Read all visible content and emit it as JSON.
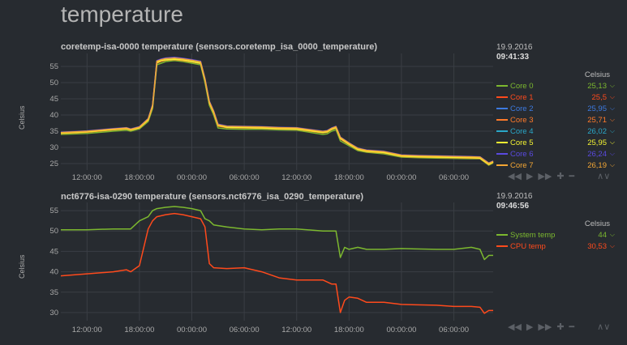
{
  "section": {
    "title": "temperature"
  },
  "charts": [
    {
      "title": "coretemp-isa-0000 temperature (sensors.coretemp_isa_0000_temperature)",
      "ylabel": "Celsius",
      "legend": {
        "date": "19.9.2016",
        "time": "09:41:33",
        "units": "Celsius",
        "items": [
          {
            "name": "Core 0",
            "value": "25,13",
            "color": "#7cb82f"
          },
          {
            "name": "Core 1",
            "value": "25,5",
            "color": "#ff4a1c"
          },
          {
            "name": "Core 2",
            "value": "25,95",
            "color": "#3d7ae0"
          },
          {
            "name": "Core 3",
            "value": "25,71",
            "color": "#ff7a2a"
          },
          {
            "name": "Core 4",
            "value": "26,02",
            "color": "#2aa7c8"
          },
          {
            "name": "Core 5",
            "value": "25,95",
            "color": "#f3f332"
          },
          {
            "name": "Core 6",
            "value": "26,24",
            "color": "#5a4ae0"
          },
          {
            "name": "Core 7",
            "value": "26,19",
            "color": "#f3a634"
          }
        ]
      },
      "controls": [
        "rewind-icon",
        "play-icon",
        "forward-icon",
        "zoom-in-icon",
        "zoom-out-icon",
        "resize-icon"
      ]
    },
    {
      "title": "nct6776-isa-0290 temperature (sensors.nct6776_isa_0290_temperature)",
      "ylabel": "Celsius",
      "legend": {
        "date": "19.9.2016",
        "time": "09:46:56",
        "units": "Celsius",
        "items": [
          {
            "name": "System temp",
            "value": "44",
            "color": "#7cb82f"
          },
          {
            "name": "CPU temp",
            "value": "30,53",
            "color": "#ff4a1c"
          }
        ]
      },
      "controls": [
        "rewind-icon",
        "play-icon",
        "forward-icon",
        "zoom-in-icon",
        "zoom-out-icon",
        "resize-icon"
      ]
    }
  ],
  "chart_data": [
    {
      "type": "line",
      "title": "coretemp-isa-0000 temperature (sensors.coretemp_isa_0000_temperature)",
      "ylabel": "Celsius",
      "xlabel": "",
      "x_ticks": [
        "12:00:00",
        "18:00:00",
        "00:00:00",
        "06:00:00",
        "12:00:00",
        "18:00:00",
        "00:00:00",
        "06:00:00"
      ],
      "y_ticks": [
        25,
        30,
        35,
        40,
        45,
        50,
        55
      ],
      "ylim": [
        23,
        59
      ],
      "grid": true,
      "x": [
        "09:00",
        "12:00",
        "15:00",
        "16:30",
        "17:00",
        "18:00",
        "19:00",
        "19:30",
        "20:00",
        "20:30",
        "21:00",
        "22:00",
        "23:00",
        "00:00",
        "01:00",
        "01:30",
        "02:00",
        "02:30",
        "03:00",
        "04:00",
        "06:00",
        "08:00",
        "10:00",
        "12:00",
        "15:00",
        "15:30",
        "16:00",
        "16:30",
        "17:00",
        "18:00",
        "19:00",
        "20:00",
        "22:00",
        "00:00",
        "02:00",
        "04:00",
        "06:00",
        "08:00",
        "09:00",
        "10:00",
        "10:30"
      ],
      "series": [
        {
          "name": "Core 0",
          "values": [
            34,
            34.3,
            35,
            35.3,
            35,
            35.7,
            38,
            42,
            55.5,
            56,
            56.5,
            56.8,
            56.5,
            56,
            55.5,
            50,
            43,
            40,
            36,
            35.7,
            35.6,
            35.6,
            35.4,
            35.3,
            34,
            34.2,
            35,
            35.5,
            32,
            30.5,
            29,
            28.5,
            28,
            27,
            26.8,
            26.7,
            26.6,
            26.5,
            26.5,
            24.5,
            25.2
          ]
        },
        {
          "name": "Core 1",
          "values": [
            34.6,
            35,
            35.7,
            36,
            35.6,
            36.3,
            38.8,
            43,
            56.5,
            57,
            57.3,
            57.5,
            57.2,
            56.8,
            56.3,
            51,
            44,
            41,
            37,
            36.4,
            36.3,
            36.2,
            36,
            35.9,
            34.8,
            35,
            35.8,
            36.3,
            33,
            31.2,
            29.6,
            29,
            28.6,
            27.5,
            27.3,
            27.2,
            27.1,
            27,
            26.9,
            25,
            25.6
          ]
        },
        {
          "name": "Core 2",
          "values": [
            34.4,
            34.8,
            35.5,
            35.8,
            35.4,
            36.1,
            38.5,
            42.7,
            56.2,
            56.8,
            57,
            57.2,
            57,
            56.5,
            56,
            50.8,
            43.8,
            40.8,
            36.8,
            36.2,
            36.1,
            36,
            35.8,
            35.7,
            34.6,
            34.8,
            35.6,
            36.1,
            32.8,
            31,
            29.4,
            28.8,
            28.4,
            27.3,
            27.1,
            27,
            26.9,
            26.8,
            26.7,
            24.8,
            25.5
          ]
        },
        {
          "name": "Core 3",
          "values": [
            34.3,
            34.7,
            35.4,
            35.7,
            35.3,
            36,
            38.4,
            42.5,
            56,
            56.6,
            56.9,
            57.1,
            56.8,
            56.4,
            55.9,
            50.6,
            43.6,
            40.6,
            36.6,
            36.1,
            36,
            35.9,
            35.7,
            35.6,
            34.5,
            34.7,
            35.5,
            36,
            32.6,
            30.9,
            29.3,
            28.7,
            28.3,
            27.2,
            27,
            26.9,
            26.8,
            26.7,
            26.6,
            24.7,
            25.4
          ]
        },
        {
          "name": "Core 4",
          "values": [
            34.5,
            34.9,
            35.6,
            35.9,
            35.5,
            36.2,
            38.6,
            42.8,
            56.3,
            56.9,
            57.1,
            57.3,
            57.1,
            56.6,
            56.1,
            50.9,
            43.9,
            40.9,
            36.9,
            36.3,
            36.2,
            36.1,
            35.9,
            35.8,
            34.7,
            34.9,
            35.7,
            36.2,
            32.9,
            31.1,
            29.5,
            28.9,
            28.5,
            27.4,
            27.2,
            27.1,
            27,
            26.9,
            26.8,
            24.9,
            25.6
          ]
        },
        {
          "name": "Core 5",
          "values": [
            34.4,
            34.8,
            35.5,
            35.8,
            35.4,
            36.1,
            38.5,
            42.7,
            56.2,
            56.8,
            57,
            57.2,
            57,
            56.5,
            56,
            50.8,
            43.8,
            40.8,
            36.8,
            36.2,
            36.1,
            36,
            35.8,
            35.7,
            34.6,
            34.8,
            35.6,
            36.1,
            32.8,
            31,
            29.4,
            28.8,
            28.4,
            27.3,
            27.1,
            27,
            26.9,
            26.8,
            26.7,
            24.8,
            25.5
          ]
        },
        {
          "name": "Core 6",
          "values": [
            34.7,
            35.1,
            35.8,
            36.1,
            35.7,
            36.4,
            38.9,
            43.2,
            56.8,
            57.3,
            57.6,
            57.8,
            57.5,
            57.1,
            56.6,
            51.3,
            44.3,
            41.3,
            37.2,
            36.6,
            36.5,
            36.4,
            36.2,
            36.1,
            35,
            35.2,
            36,
            36.5,
            33.2,
            31.4,
            29.8,
            29.2,
            28.8,
            27.7,
            27.5,
            27.4,
            27.3,
            27.2,
            27.1,
            25.2,
            25.8
          ]
        },
        {
          "name": "Core 7",
          "values": [
            34.6,
            35,
            35.7,
            36,
            35.6,
            36.3,
            38.8,
            43,
            56.6,
            57.1,
            57.4,
            57.6,
            57.3,
            56.9,
            56.4,
            51.1,
            44.1,
            41.1,
            37,
            36.5,
            36.4,
            36.3,
            36.1,
            36,
            34.9,
            35.1,
            35.9,
            36.4,
            33.1,
            31.3,
            29.7,
            29.1,
            28.7,
            27.6,
            27.4,
            27.3,
            27.2,
            27.1,
            27,
            25.1,
            25.7
          ]
        }
      ]
    },
    {
      "type": "line",
      "title": "nct6776-isa-0290 temperature (sensors.nct6776_isa_0290_temperature)",
      "ylabel": "Celsius",
      "xlabel": "",
      "x_ticks": [
        "12:00:00",
        "18:00:00",
        "00:00:00",
        "06:00:00",
        "12:00:00",
        "18:00:00",
        "00:00:00",
        "06:00:00"
      ],
      "y_ticks": [
        30,
        35,
        40,
        45,
        50,
        55
      ],
      "ylim": [
        28,
        57
      ],
      "grid": true,
      "x": [
        "09:00",
        "12:00",
        "15:00",
        "16:30",
        "17:00",
        "18:00",
        "19:00",
        "19:30",
        "20:00",
        "21:00",
        "22:00",
        "23:00",
        "00:00",
        "01:00",
        "01:30",
        "02:00",
        "02:30",
        "04:00",
        "06:00",
        "08:00",
        "10:00",
        "12:00",
        "15:00",
        "15:30",
        "16:00",
        "16:30",
        "17:00",
        "17:30",
        "18:00",
        "19:00",
        "20:00",
        "22:00",
        "00:00",
        "04:00",
        "06:00",
        "08:00",
        "09:00",
        "09:30",
        "10:00",
        "10:30"
      ],
      "series": [
        {
          "name": "System temp",
          "values": [
            50.3,
            50.3,
            50.5,
            50.5,
            50.5,
            52.5,
            53.5,
            55,
            55.5,
            55.8,
            56,
            55.8,
            55.5,
            55,
            53,
            52.5,
            51.5,
            51,
            50.5,
            50.3,
            50.5,
            50.5,
            50,
            50,
            50,
            50,
            43.5,
            46,
            45.5,
            46,
            45.5,
            45.5,
            45.7,
            45.5,
            45.5,
            46,
            45.5,
            43,
            44,
            44
          ]
        },
        {
          "name": "CPU temp",
          "values": [
            39,
            39.5,
            40,
            40.5,
            40,
            41.5,
            50.5,
            52.5,
            53.5,
            54,
            54.3,
            54,
            53.5,
            53,
            51,
            42,
            41,
            40.8,
            41,
            40,
            38.5,
            38,
            38,
            37.5,
            37,
            37,
            30,
            33,
            33.8,
            33.5,
            32.5,
            32.5,
            32,
            31.8,
            31.5,
            31.5,
            31.3,
            29.8,
            30.5,
            30.5
          ]
        }
      ]
    }
  ]
}
